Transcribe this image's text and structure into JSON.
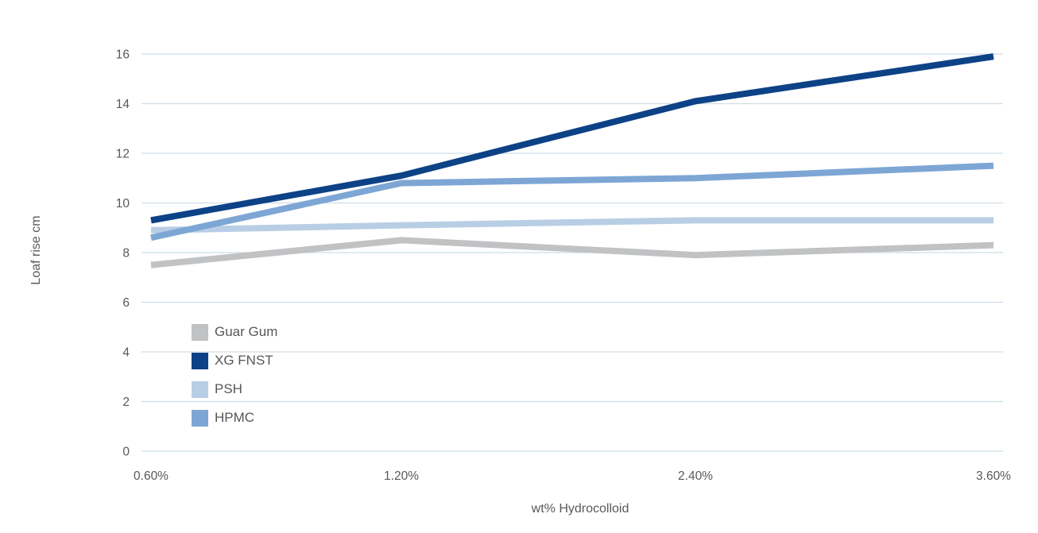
{
  "chart_data": {
    "type": "line",
    "title": "",
    "xlabel": "wt% Hydrocolloid",
    "ylabel": "Loaf rise cm",
    "categories": [
      "0.60%",
      "1.20%",
      "2.40%",
      "3.60%"
    ],
    "series": [
      {
        "name": "Guar Gum",
        "color": "#c1c2c4",
        "values": [
          7.5,
          8.5,
          7.9,
          8.3
        ]
      },
      {
        "name": "XG FNST",
        "color": "#0d4286",
        "values": [
          9.3,
          11.1,
          14.1,
          15.9
        ]
      },
      {
        "name": "PSH",
        "color": "#b8cee5",
        "values": [
          8.9,
          9.1,
          9.3,
          9.3
        ]
      },
      {
        "name": "HPMC",
        "color": "#7da6d5",
        "values": [
          8.6,
          10.8,
          11.0,
          11.5
        ]
      }
    ],
    "ylim": [
      0,
      16
    ],
    "ytick_step": 2,
    "yticks": [
      0,
      2,
      4,
      6,
      8,
      10,
      12,
      14,
      16
    ],
    "grid": "horizontal",
    "legend_position": "inside-left-middle",
    "legend_order": [
      "Guar Gum",
      "XG FNST",
      "PSH",
      "HPMC"
    ],
    "colors": {
      "gridline": "#cfdde8",
      "axis_text": "#58595b",
      "background": "#ffffff"
    }
  }
}
